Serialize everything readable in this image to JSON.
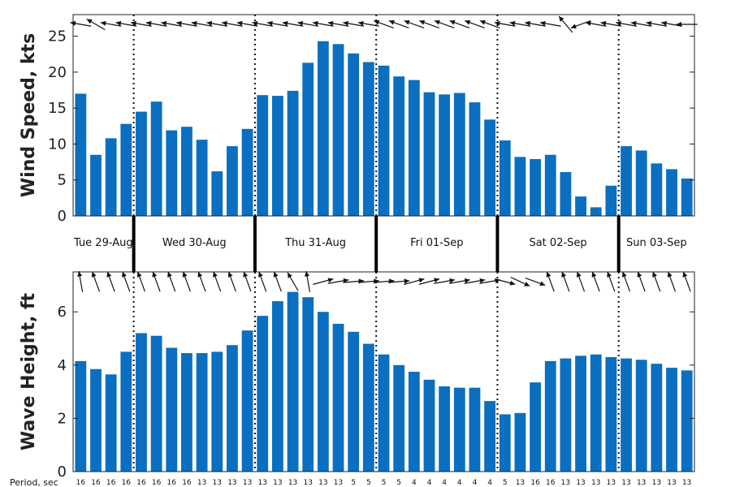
{
  "chart_data": [
    {
      "type": "bar",
      "ylabel": "Wind Speed, kts",
      "ylim": [
        0,
        28
      ],
      "yticks": [
        0,
        5,
        10,
        15,
        20,
        25
      ],
      "bar_color": "#0a6fc0",
      "values": [
        17,
        8.5,
        10.8,
        12.8,
        14.5,
        15.9,
        11.9,
        12.4,
        10.6,
        6.2,
        9.7,
        12.1,
        16.8,
        16.7,
        17.4,
        21.3,
        24.3,
        23.9,
        22.6,
        21.4,
        20.9,
        19.4,
        18.9,
        17.2,
        16.9,
        17.1,
        15.8,
        13.4,
        10.5,
        8.2,
        7.9,
        8.5,
        6.1,
        2.7,
        1.2,
        4.2,
        9.7,
        9.1,
        7.3,
        6.5,
        5.2
      ],
      "direction_arrows_deg": [
        170,
        150,
        170,
        170,
        170,
        170,
        170,
        170,
        170,
        170,
        170,
        170,
        170,
        170,
        170,
        170,
        170,
        170,
        170,
        170,
        160,
        160,
        160,
        160,
        160,
        160,
        160,
        160,
        170,
        170,
        170,
        170,
        130,
        200,
        170,
        170,
        170,
        170,
        170,
        170,
        180
      ]
    },
    {
      "type": "bar",
      "ylabel": "Wave Height, ft",
      "ylim": [
        0,
        7.5
      ],
      "yticks": [
        0,
        2,
        4,
        6
      ],
      "bar_color": "#0a6fc0",
      "values": [
        4.15,
        3.85,
        3.65,
        4.5,
        5.2,
        5.1,
        4.65,
        4.45,
        4.45,
        4.5,
        4.75,
        5.3,
        5.85,
        6.4,
        6.75,
        6.55,
        6.0,
        5.55,
        5.25,
        4.8,
        4.4,
        4.0,
        3.75,
        3.45,
        3.2,
        3.15,
        3.15,
        2.65,
        2.15,
        2.2,
        3.35,
        4.15,
        4.25,
        4.35,
        4.4,
        4.3,
        4.25,
        4.2,
        4.05,
        3.9,
        3.8
      ],
      "direction_arrows_deg": [
        100,
        110,
        110,
        110,
        110,
        110,
        110,
        110,
        110,
        110,
        110,
        110,
        110,
        110,
        120,
        100,
        15,
        10,
        5,
        5,
        5,
        5,
        15,
        15,
        10,
        10,
        10,
        10,
        -15,
        -25,
        -20,
        110,
        110,
        110,
        110,
        110,
        110,
        110,
        110,
        110,
        110
      ]
    }
  ],
  "days": [
    "Tue 29-Aug",
    "Wed 30-Aug",
    "Thu 31-Aug",
    "Fri 01-Sep",
    "Sat 02-Sep",
    "Sun 03-Sep"
  ],
  "period_title": "Period, sec",
  "periods": [
    "16",
    "16",
    "16",
    "16",
    "16",
    "16",
    "16",
    "16",
    "13",
    "13",
    "13",
    "13",
    "13",
    "13",
    "13",
    "13",
    "13",
    "13",
    "5",
    "5",
    "5",
    "5",
    "4",
    "4",
    "4",
    "4",
    "4",
    "4",
    "5",
    "13",
    "16",
    "16",
    "13",
    "13",
    "13",
    "13",
    "13",
    "13",
    "13",
    "13",
    "13"
  ]
}
